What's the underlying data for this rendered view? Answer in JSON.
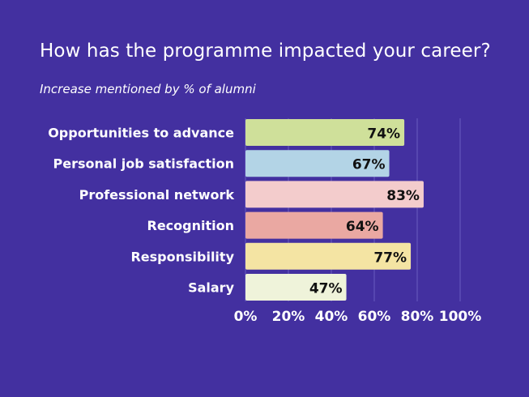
{
  "chart_data": {
    "type": "bar",
    "orientation": "horizontal",
    "title": "How has the programme impacted your career?",
    "subtitle": "Increase mentioned by % of alumni",
    "categories": [
      "Opportunities to advance",
      "Personal job satisfaction",
      "Professional network",
      "Recognition",
      "Responsibility",
      "Salary"
    ],
    "values": [
      74,
      67,
      83,
      64,
      77,
      47
    ],
    "value_labels": [
      "74%",
      "67%",
      "83%",
      "64%",
      "77%",
      "47%"
    ],
    "bar_colors": [
      "#cfe09a",
      "#b3d4e6",
      "#f3cccc",
      "#eaa8a2",
      "#f4e4a3",
      "#eff3da"
    ],
    "xlim": [
      0,
      100
    ],
    "x_ticks": [
      "0%",
      "20%",
      "40%",
      "60%",
      "80%",
      "100%"
    ],
    "grid": true,
    "background": "#4330a0",
    "text_color": "#ffffff"
  }
}
